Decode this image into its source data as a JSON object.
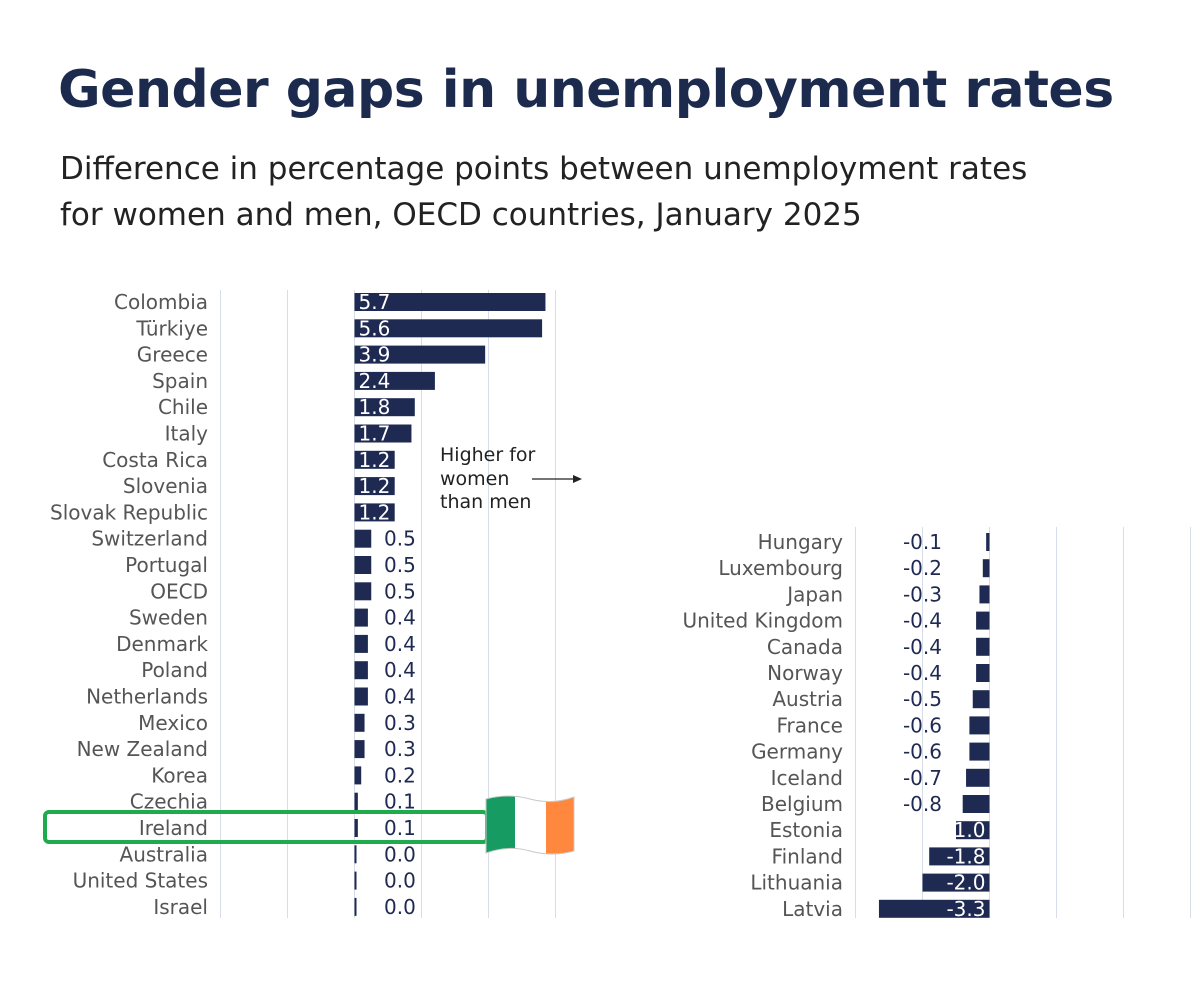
{
  "title": "Gender gaps in unemployment rates",
  "subtitle_lines": [
    "Difference in percentage points between unemployment rates",
    "for women and men, OECD countries, January 2025"
  ],
  "annotation_lines": [
    "Higher for",
    "women",
    "than men"
  ],
  "highlight": {
    "country": "Ireland",
    "color": "#1faa4e",
    "flag_colors": [
      "#169b62",
      "#ffffff",
      "#ff883e"
    ]
  },
  "colors": {
    "bar": "#1f2a52",
    "grid": "#d6dde8",
    "label": "#555555",
    "value_dark": "#1f2a52",
    "value_light": "#ffffff"
  },
  "chart_data": [
    {
      "type": "bar",
      "orientation": "horizontal",
      "categories": [
        "Colombia",
        "Türkiye",
        "Greece",
        "Spain",
        "Chile",
        "Italy",
        "Costa Rica",
        "Slovenia",
        "Slovak Republic",
        "Switzerland",
        "Portugal",
        "OECD",
        "Sweden",
        "Denmark",
        "Poland",
        "Netherlands",
        "Mexico",
        "New Zealand",
        "Korea",
        "Czechia",
        "Ireland",
        "Australia",
        "United States",
        "Israel"
      ],
      "values": [
        5.7,
        5.6,
        3.9,
        2.4,
        1.8,
        1.7,
        1.2,
        1.2,
        1.2,
        0.5,
        0.5,
        0.5,
        0.4,
        0.4,
        0.4,
        0.4,
        0.3,
        0.3,
        0.2,
        0.1,
        0.1,
        0.0,
        0.0,
        0.0
      ],
      "value_labels": [
        "5.7",
        "5.6",
        "3.9",
        "2.4",
        "1.8",
        "1.7",
        "1.2",
        "1.2",
        "1.2",
        "0.5",
        "0.5",
        "0.5",
        "0.4",
        "0.4",
        "0.4",
        "0.4",
        "0.3",
        "0.3",
        "0.2",
        "0.1",
        "0.1",
        "0.0",
        "0.0",
        "0.0"
      ],
      "xlim": [
        -4,
        6
      ],
      "grid": true
    },
    {
      "type": "bar",
      "orientation": "horizontal",
      "categories": [
        "Hungary",
        "Luxembourg",
        "Japan",
        "United Kingdom",
        "Canada",
        "Norway",
        "Austria",
        "France",
        "Germany",
        "Iceland",
        "Belgium",
        "Estonia",
        "Finland",
        "Lithuania",
        "Latvia"
      ],
      "values": [
        -0.1,
        -0.2,
        -0.3,
        -0.4,
        -0.4,
        -0.4,
        -0.5,
        -0.6,
        -0.6,
        -0.7,
        -0.8,
        -1.0,
        -1.8,
        -2.0,
        -3.3
      ],
      "value_labels": [
        "-0.1",
        "-0.2",
        "-0.3",
        "-0.4",
        "-0.4",
        "-0.4",
        "-0.5",
        "-0.6",
        "-0.6",
        "-0.7",
        "-0.8",
        "-1.0",
        "-1.8",
        "-2.0",
        "-3.3"
      ],
      "xlim": [
        -4,
        6
      ],
      "grid": true
    }
  ]
}
